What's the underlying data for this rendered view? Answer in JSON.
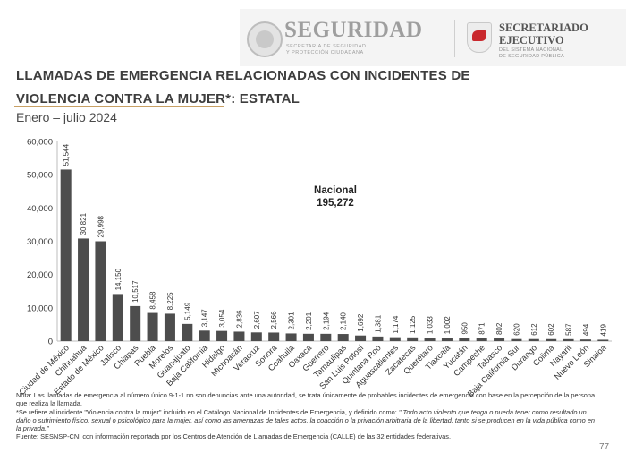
{
  "header": {
    "brand1_name": "SEGURIDAD",
    "brand1_sub": "SECRETARÍA DE SEGURIDAD\nY PROTECCIÓN CIUDADANA",
    "brand2_name": "SECRETARIADO\nEJECUTIVO",
    "brand2_sub": "DEL SISTEMA NACIONAL\nDE SEGURIDAD PÚBLICA"
  },
  "title_line1": "LLAMADAS DE EMERGENCIA RELACIONADAS CON INCIDENTES DE",
  "title_line2": "VIOLENCIA CONTRA LA MUJER*: ESTATAL",
  "subtitle": "Enero – julio 2024",
  "chart_data": {
    "type": "bar",
    "title": "LLAMADAS DE EMERGENCIA RELACIONADAS CON INCIDENTES DE VIOLENCIA CONTRA LA MUJER*: ESTATAL",
    "xlabel": "",
    "ylabel": "",
    "ylim": [
      0,
      60000
    ],
    "yticks": [
      0,
      10000,
      20000,
      30000,
      40000,
      50000,
      60000
    ],
    "ytick_labels": [
      "0",
      "10,000",
      "20,000",
      "30,000",
      "40,000",
      "50,000",
      "60,000"
    ],
    "grid": false,
    "bar_color": "#4d4d4d",
    "total_label": "Nacional",
    "total_value": "195,272",
    "categories": [
      "Ciudad de México",
      "Chihuahua",
      "Estado de México",
      "Jalisco",
      "Chiapas",
      "Puebla",
      "Morelos",
      "Guanajuato",
      "Baja California",
      "Hidalgo",
      "Michoacán",
      "Veracruz",
      "Sonora",
      "Coahuila",
      "Oaxaca",
      "Guerrero",
      "Tamaulipas",
      "San Luis Potosí",
      "Quintana Roo",
      "Aguascalientes",
      "Zacatecas",
      "Querétaro",
      "Tlaxcala",
      "Yucatán",
      "Campeche",
      "Tabasco",
      "Baja California Sur",
      "Durango",
      "Colima",
      "Nayarit",
      "Nuevo León",
      "Sinaloa"
    ],
    "values": [
      51544,
      30821,
      29998,
      14150,
      10517,
      8458,
      8225,
      5149,
      3147,
      3054,
      2836,
      2607,
      2566,
      2301,
      2201,
      2194,
      2140,
      1692,
      1381,
      1174,
      1125,
      1033,
      1002,
      950,
      871,
      802,
      620,
      612,
      602,
      587,
      494,
      419
    ],
    "value_labels": [
      "51,544",
      "30,821",
      "29,998",
      "14,150",
      "10,517",
      "8,458",
      "8,225",
      "5,149",
      "3,147",
      "3,054",
      "2,836",
      "2,607",
      "2,566",
      "2,301",
      "2,201",
      "2,194",
      "2,140",
      "1,692",
      "1,381",
      "1,174",
      "1,125",
      "1,033",
      "1,002",
      "950",
      "871",
      "802",
      "620",
      "612",
      "602",
      "587",
      "494",
      "419"
    ]
  },
  "notes": {
    "note1": "Nota: Las llamadas de emergencia al número único 9-1-1 no son denuncias ante una autoridad, se trata únicamente de probables incidentes de emergencia con base en la percepción de la persona que realiza la llamada.",
    "note2_lead": "*Se refiere al incidente \"Violencia contra la mujer\" incluido en el Catálogo Nacional de Incidentes de Emergencia, y definido como: ",
    "note2_quote": "\" Todo acto violento que tenga o pueda tener como resultado un daño o sufrimiento físico, sexual o psicológico para la mujer, así como las amenazas de tales actos, la coacción o la privación arbitraria de la libertad, tanto si se producen en la vida pública como en la privada.\"",
    "source": "Fuente: SESNSP-CNI con información reportada por los Centros de Atención de Llamadas de Emergencia (CALLE) de las 32 entidades federativas."
  },
  "page_number": "77"
}
